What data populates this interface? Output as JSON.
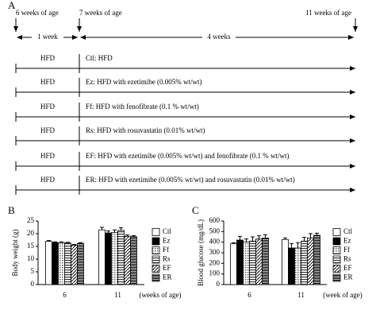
{
  "panel_a": {
    "panel_label": "A",
    "timepoints": [
      "6 weeks of age",
      "7 weeks of age",
      "11 weeks of age"
    ],
    "durations": [
      "1 week",
      "4 weeks"
    ],
    "rows": [
      {
        "diet": "HFD",
        "label": "Ctl: HFD"
      },
      {
        "diet": "HFD",
        "label": "Ez: HFD with ezetimibe (0.005% wt/wt)"
      },
      {
        "diet": "HFD",
        "label": "Ff: HFD with fenofibrate (0.1 % wt/wt)"
      },
      {
        "diet": "HFD",
        "label": "Rs: HFD with rosuvastatin (0.01% wt/wt)"
      },
      {
        "diet": "HFD",
        "label": "EF: HFD with ezetimibe (0.005% wt/wt) and fenofibrate (0.1 % wt/wt)"
      },
      {
        "diet": "HFD",
        "label": "ER: HFD with ezetimibe (0.005% wt/wt) and rosuvastatin (0.01% wt/wt)"
      }
    ]
  },
  "chart_data": [
    {
      "type": "bar",
      "panel_label": "B",
      "ylabel": "Body weight (g)",
      "xlabel": "(weeks of age)",
      "categories": [
        "6",
        "11"
      ],
      "ylim": [
        0,
        25
      ],
      "yticks": [
        0,
        5,
        10,
        15,
        20,
        25
      ],
      "legend": "right",
      "series": [
        {
          "name": "Ctl",
          "color": "#ffffff",
          "values": [
            17,
            21.5
          ],
          "errors": [
            0.3,
            1
          ]
        },
        {
          "name": "Ez",
          "color": "#000000",
          "values": [
            16.5,
            20.3
          ],
          "errors": [
            0.3,
            0.8
          ]
        },
        {
          "name": "Ff",
          "color": "#bbbbbb",
          "values": [
            16.5,
            20.5
          ],
          "errors": [
            0.3,
            1
          ]
        },
        {
          "name": "Rs",
          "color": "#888888",
          "values": [
            16.3,
            21.3
          ],
          "errors": [
            0.3,
            1
          ]
        },
        {
          "name": "EF",
          "color": "#666666",
          "values": [
            15.5,
            19
          ],
          "errors": [
            0.3,
            0.5
          ]
        },
        {
          "name": "ER",
          "color": "#444444",
          "values": [
            16.2,
            18.8
          ],
          "errors": [
            0.3,
            0.4
          ]
        }
      ]
    },
    {
      "type": "bar",
      "panel_label": "C",
      "ylabel": "Blood glucose (mg/dL)",
      "xlabel": "(week of age)",
      "categories": [
        "6",
        "11"
      ],
      "ylim": [
        0,
        600
      ],
      "yticks": [
        0,
        100,
        200,
        300,
        400,
        500,
        600
      ],
      "legend": "right",
      "series": [
        {
          "name": "Ctl",
          "color": "#ffffff",
          "values": [
            385,
            425
          ],
          "errors": [
            10,
            15
          ]
        },
        {
          "name": "Ez",
          "color": "#000000",
          "values": [
            420,
            345
          ],
          "errors": [
            35,
            40
          ]
        },
        {
          "name": "Ff",
          "color": "#bbbbbb",
          "values": [
            400,
            345
          ],
          "errors": [
            30,
            50
          ]
        },
        {
          "name": "Rs",
          "color": "#888888",
          "values": [
            410,
            410
          ],
          "errors": [
            40,
            35
          ]
        },
        {
          "name": "EF",
          "color": "#666666",
          "values": [
            430,
            440
          ],
          "errors": [
            30,
            40
          ]
        },
        {
          "name": "ER",
          "color": "#444444",
          "values": [
            440,
            465
          ],
          "errors": [
            30,
            20
          ]
        }
      ]
    }
  ]
}
